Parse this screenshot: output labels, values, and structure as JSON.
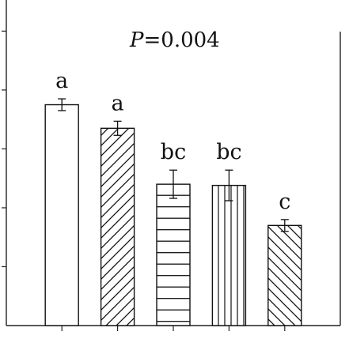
{
  "chart_data": {
    "type": "bar",
    "annotation": {
      "var": "P",
      "text": "=0.004"
    },
    "categories": [
      "",
      "",
      "",
      "",
      ""
    ],
    "values": [
      3.75,
      3.35,
      2.4,
      2.38,
      1.7
    ],
    "errors": [
      0.1,
      0.12,
      0.24,
      0.26,
      0.1
    ],
    "letters": [
      "a",
      "a",
      "bc",
      "bc",
      "c"
    ],
    "patterns": [
      "none",
      "diag-up",
      "horizontal",
      "vertical",
      "diag-down"
    ],
    "ylim": [
      0,
      5.3
    ],
    "ytick_step": 1,
    "xlabel": "",
    "ylabel": "",
    "grid": false,
    "colors": {
      "bar_fill": "#ffffff",
      "stroke": "#111111"
    }
  }
}
